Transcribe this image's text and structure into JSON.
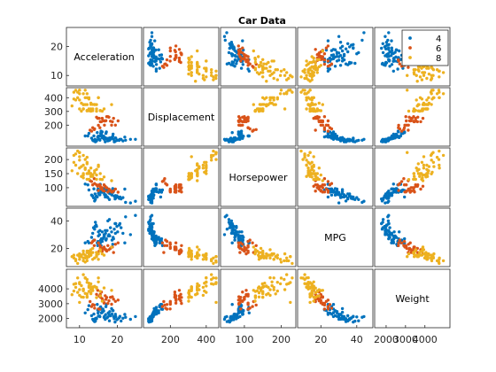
{
  "chart_data": {
    "type": "scatter",
    "title": "Car Data",
    "variables": [
      "Acceleration",
      "Displacement",
      "Horsepower",
      "MPG",
      "Weight"
    ],
    "axis_ranges": {
      "Acceleration": [
        7,
        26
      ],
      "Displacement": [
        60,
        460
      ],
      "Horsepower": [
        40,
        235
      ],
      "MPG": [
        8,
        48
      ],
      "Weight": [
        1500,
        5200
      ]
    },
    "ticks": {
      "Acceleration": [
        "10",
        "20"
      ],
      "Displacement": [
        "200",
        "300",
        "400"
      ],
      "Horsepower": [
        "100",
        "150",
        "200"
      ],
      "MPG": [
        "20",
        "40"
      ],
      "Weight": [
        "2000",
        "3000",
        "4000"
      ]
    },
    "y_tick_labels": {
      "Acceleration": [
        {
          "v": 10,
          "t": "10"
        },
        {
          "v": 20,
          "t": "20"
        }
      ],
      "Displacement": [
        {
          "v": 200,
          "t": "200"
        },
        {
          "v": 300,
          "t": "300"
        },
        {
          "v": 400,
          "t": "400"
        }
      ],
      "Horsepower": [
        {
          "v": 100,
          "t": "100"
        },
        {
          "v": 150,
          "t": "150"
        },
        {
          "v": 200,
          "t": "200"
        }
      ],
      "MPG": [
        {
          "v": 20,
          "t": "20"
        },
        {
          "v": 40,
          "t": "40"
        }
      ],
      "Weight": [
        {
          "v": 2000,
          "t": "2000"
        },
        {
          "v": 3000,
          "t": "3000"
        },
        {
          "v": 4000,
          "t": "4000"
        }
      ]
    },
    "x_tick_labels": {
      "Acceleration": [
        {
          "v": 10,
          "t": "10"
        },
        {
          "v": 20,
          "t": "20"
        }
      ],
      "Displacement": [
        {
          "v": 200,
          "t": "200"
        },
        {
          "v": 400,
          "t": "400"
        }
      ],
      "Horsepower": [
        {
          "v": 100,
          "t": "100"
        },
        {
          "v": 200,
          "t": "200"
        }
      ],
      "MPG": [
        {
          "v": 20,
          "t": "20"
        },
        {
          "v": 40,
          "t": "40"
        }
      ],
      "Weight": [
        {
          "v": 2000,
          "t": "2000"
        },
        {
          "v": 3000,
          "t": "3000"
        },
        {
          "v": 4000,
          "t": "4000"
        }
      ]
    },
    "legend": {
      "placement": "top-right",
      "entries": [
        "4",
        "6",
        "8"
      ]
    },
    "grid": false,
    "series": [
      {
        "name": "4",
        "color": "#0072BD",
        "points": [
          [
            19.0,
            97,
            88,
            27,
            2130
          ],
          [
            18.5,
            110,
            87,
            32,
            2672
          ],
          [
            14.5,
            85,
            70,
            36,
            1990
          ],
          [
            16.8,
            79,
            67,
            33,
            1950
          ],
          [
            15.5,
            121,
            112,
            24,
            2750
          ],
          [
            14.0,
            91,
            53,
            34,
            1795
          ],
          [
            17.0,
            140,
            90,
            26,
            2800
          ],
          [
            15.0,
            98,
            80,
            32,
            2164
          ],
          [
            19.6,
            105,
            63,
            38,
            2125
          ],
          [
            13.5,
            91,
            70,
            31,
            1955
          ],
          [
            16.4,
            120,
            97,
            28,
            2506
          ],
          [
            21.0,
            97,
            60,
            35,
            1834
          ],
          [
            14.9,
            113,
            95,
            25,
            2372
          ],
          [
            20.5,
            89,
            62,
            37,
            2050
          ],
          [
            18.0,
            107,
            86,
            29,
            2464
          ],
          [
            12.5,
            140,
            92,
            24,
            2865
          ],
          [
            16.0,
            151,
            84,
            25,
            2635
          ],
          [
            17.5,
            86,
            65,
            40,
            2110
          ],
          [
            22.2,
            90,
            48,
            43,
            2085
          ],
          [
            15.3,
            97,
            75,
            30,
            2171
          ],
          [
            13.8,
            122,
            96,
            26,
            2300
          ],
          [
            19.4,
            81,
            60,
            38,
            1760
          ],
          [
            15.8,
            135,
            84,
            27,
            2385
          ],
          [
            16.9,
            108,
            75,
            31,
            2265
          ],
          [
            14.2,
            79,
            58,
            39,
            1825
          ],
          [
            18.8,
            119,
            97,
            23,
            2545
          ],
          [
            17.3,
            98,
            68,
            33,
            2045
          ],
          [
            24.8,
            97,
            52,
            44,
            2130
          ],
          [
            15.7,
            156,
            92,
            22,
            2620
          ],
          [
            20.1,
            91,
            67,
            32,
            1965
          ],
          [
            13.2,
            105,
            74,
            28,
            2190
          ],
          [
            16.2,
            112,
            88,
            27,
            2640
          ],
          [
            18.2,
            97,
            78,
            35,
            2188
          ],
          [
            14.7,
            146,
            67,
            24,
            2950
          ],
          [
            21.5,
            85,
            65,
            31,
            2020
          ],
          [
            15.0,
            120,
            90,
            29,
            2460
          ],
          [
            17.8,
            100,
            81,
            30,
            2290
          ],
          [
            19.9,
            89,
            71,
            36,
            1925
          ],
          [
            12.2,
            121,
            110,
            25,
            2600
          ],
          [
            16.6,
            98,
            76,
            29,
            2145
          ],
          [
            14.4,
            91,
            68,
            37,
            2025
          ],
          [
            23.5,
            97,
            46,
            30,
            1950
          ],
          [
            15.6,
            140,
            86,
            26,
            2790
          ],
          [
            18.6,
            105,
            74,
            26,
            2300
          ],
          [
            13.7,
            86,
            64,
            35,
            1875
          ],
          [
            17.1,
            151,
            90,
            27,
            2950
          ],
          [
            16.0,
            108,
            93,
            32,
            2420
          ],
          [
            20.7,
            97,
            67,
            38,
            2145
          ],
          [
            14.8,
            114,
            91,
            22,
            2582
          ],
          [
            19.2,
            79,
            70,
            34,
            1990
          ],
          [
            11.5,
            121,
            113,
            24,
            2380
          ],
          [
            17.6,
            104,
            95,
            29,
            2375
          ],
          [
            15.4,
            90,
            75,
            33,
            2125
          ],
          [
            18.9,
            135,
            84,
            28,
            2525
          ],
          [
            16.5,
            98,
            83,
            30,
            2075
          ],
          [
            22.0,
            113,
            95,
            24,
            2278
          ],
          [
            14.1,
            97,
            78,
            36,
            1985
          ],
          [
            17.9,
            89,
            58,
            41,
            1845
          ],
          [
            15.9,
            122,
            86,
            27,
            2395
          ],
          [
            19.5,
            107,
            72,
            31,
            2290
          ]
        ]
      },
      {
        "name": "6",
        "color": "#D95319",
        "points": [
          [
            16.0,
            250,
            100,
            18,
            3336
          ],
          [
            15.5,
            225,
            105,
            20,
            3613
          ],
          [
            17.0,
            232,
            100,
            19,
            3288
          ],
          [
            18.5,
            200,
            85,
            21,
            2965
          ],
          [
            14.5,
            258,
            110,
            17,
            3632
          ],
          [
            16.5,
            231,
            110,
            21,
            3039
          ],
          [
            15.0,
            199,
            90,
            24,
            2648
          ],
          [
            19.0,
            250,
            88,
            17,
            3302
          ],
          [
            13.5,
            181,
            110,
            25,
            2945
          ],
          [
            17.5,
            262,
            85,
            22,
            3015
          ],
          [
            15.8,
            225,
            95,
            19,
            3785
          ],
          [
            18.2,
            229,
            90,
            20,
            3425
          ],
          [
            14.0,
            173,
            115,
            26,
            2700
          ],
          [
            16.8,
            231,
            105,
            19,
            3535
          ],
          [
            19.5,
            200,
            95,
            23,
            3155
          ],
          [
            15.2,
            250,
            110,
            18,
            3520
          ],
          [
            13.2,
            156,
            122,
            24,
            2807
          ],
          [
            16.2,
            232,
            90,
            20,
            3210
          ],
          [
            17.8,
            258,
            95,
            19,
            3193
          ],
          [
            12.8,
            163,
            125,
            17,
            3140
          ],
          [
            18.7,
            225,
            85,
            21,
            3465
          ],
          [
            15.4,
            181,
            110,
            22,
            2635
          ],
          [
            14.8,
            250,
            105,
            16,
            3897
          ],
          [
            16.6,
            200,
            88,
            20,
            3060
          ],
          [
            20.2,
            231,
            84,
            24,
            3245
          ],
          [
            17.2,
            262,
            100,
            18,
            3420
          ],
          [
            13.9,
            168,
            132,
            22,
            2910
          ],
          [
            15.6,
            225,
            100,
            21,
            3430
          ]
        ]
      },
      {
        "name": "8",
        "color": "#EDB120",
        "points": [
          [
            12.0,
            307,
            130,
            18,
            3504
          ],
          [
            11.5,
            350,
            165,
            15,
            3693
          ],
          [
            11.0,
            318,
            150,
            16,
            3436
          ],
          [
            12.0,
            304,
            150,
            17,
            3433
          ],
          [
            10.5,
            302,
            140,
            14,
            3449
          ],
          [
            10.0,
            429,
            198,
            12,
            4341
          ],
          [
            9.0,
            454,
            220,
            11,
            4354
          ],
          [
            8.5,
            440,
            215,
            13,
            4312
          ],
          [
            10.0,
            455,
            225,
            14,
            4425
          ],
          [
            8.5,
            390,
            190,
            15,
            3850
          ],
          [
            10.0,
            383,
            170,
            15,
            3563
          ],
          [
            8.0,
            340,
            160,
            14,
            3609
          ],
          [
            9.5,
            400,
            150,
            15,
            3761
          ],
          [
            10.0,
            455,
            225,
            14,
            3086
          ],
          [
            15.0,
            400,
            175,
            16,
            4464
          ],
          [
            14.0,
            351,
            153,
            13,
            4154
          ],
          [
            12.5,
            318,
            150,
            14,
            4096
          ],
          [
            13.0,
            304,
            150,
            15,
            3672
          ],
          [
            11.0,
            350,
            145,
            13,
            3988
          ],
          [
            13.5,
            318,
            140,
            12,
            4129
          ],
          [
            12.0,
            429,
            208,
            11,
            4633
          ],
          [
            11.5,
            400,
            170,
            13,
            4746
          ],
          [
            13.0,
            351,
            149,
            15,
            4335
          ],
          [
            14.5,
            318,
            145,
            14,
            4042
          ],
          [
            11.0,
            350,
            180,
            16,
            3940
          ],
          [
            12.5,
            305,
            130,
            18,
            3830
          ],
          [
            10.5,
            360,
            175,
            15,
            4215
          ],
          [
            13.0,
            302,
            140,
            17,
            3730
          ],
          [
            14.5,
            350,
            165,
            15,
            4100
          ],
          [
            12.0,
            400,
            190,
            13,
            4440
          ],
          [
            9.0,
            383,
            180,
            12,
            4100
          ],
          [
            11.0,
            318,
            135,
            18,
            3870
          ],
          [
            15.5,
            307,
            130,
            19,
            3525
          ],
          [
            13.5,
            351,
            142,
            17,
            4055
          ],
          [
            16.0,
            302,
            129,
            16,
            3169
          ],
          [
            12.5,
            390,
            155,
            14,
            4380
          ],
          [
            11.5,
            455,
            200,
            10,
            4720
          ],
          [
            14.0,
            350,
            160,
            13,
            4165
          ],
          [
            10.0,
            318,
            210,
            16,
            3945
          ],
          [
            15.0,
            400,
            180,
            12,
            4735
          ],
          [
            13.5,
            305,
            145,
            20,
            3880
          ],
          [
            12.0,
            350,
            185,
            14,
            3660
          ],
          [
            16.5,
            318,
            138,
            15,
            4060
          ],
          [
            11.0,
            429,
            215,
            11,
            4955
          ],
          [
            14.5,
            302,
            130,
            17,
            3410
          ],
          [
            13.0,
            360,
            170,
            19,
            3940
          ],
          [
            12.5,
            400,
            160,
            16,
            4190
          ],
          [
            9.5,
            440,
            230,
            9,
            4732
          ],
          [
            15.5,
            305,
            150,
            18,
            3820
          ],
          [
            18.5,
            350,
            125,
            21,
            3900
          ],
          [
            13.0,
            318,
            150,
            16,
            4140
          ]
        ]
      }
    ]
  }
}
